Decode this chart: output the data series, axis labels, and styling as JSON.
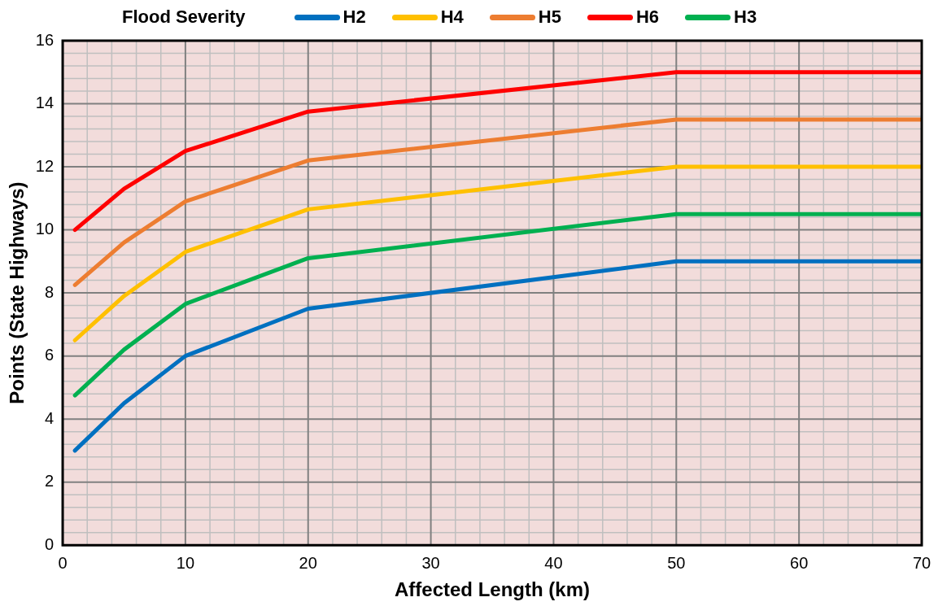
{
  "chart_data": {
    "type": "line",
    "legend_title": "Flood Severity",
    "xlabel": "Affected Length (km)",
    "ylabel": "Points (State Highways)",
    "x": [
      1,
      5,
      10,
      20,
      50,
      70
    ],
    "series": [
      {
        "name": "H2",
        "color": "#0070c0",
        "values": [
          3,
          4.5,
          6,
          7.5,
          9,
          9
        ]
      },
      {
        "name": "H4",
        "color": "#ffc000",
        "values": [
          6.5,
          7.9,
          9.3,
          10.65,
          12,
          12
        ]
      },
      {
        "name": "H5",
        "color": "#ed7d31",
        "values": [
          8.25,
          9.6,
          10.9,
          12.2,
          13.5,
          13.5
        ]
      },
      {
        "name": "H6",
        "color": "#ff0000",
        "values": [
          10,
          11.3,
          12.5,
          13.75,
          15,
          15
        ]
      },
      {
        "name": "H3",
        "color": "#00b050",
        "values": [
          4.75,
          6.2,
          7.65,
          9.1,
          10.5,
          10.5
        ]
      }
    ],
    "xlim": [
      0,
      70
    ],
    "xticks": [
      0,
      10,
      20,
      30,
      40,
      50,
      60,
      70
    ],
    "ylim": [
      0,
      16
    ],
    "yticks": [
      0,
      2,
      4,
      6,
      8,
      10,
      12,
      14,
      16
    ],
    "grid": true,
    "legend": "top",
    "marker": "none",
    "line_style": "solid"
  }
}
